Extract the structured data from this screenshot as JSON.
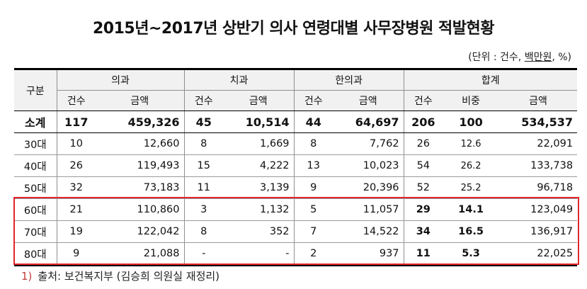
{
  "title": "2015년~2017년 상반기 의사 연령대별 사무장병원 적발현황",
  "unit": {
    "prefix": "(단위 : 건수, ",
    "underlined": "백만원",
    "suffix": ", %)"
  },
  "header": {
    "gubun": "구분",
    "groups": [
      "의과",
      "치과",
      "한의과",
      "합계"
    ],
    "sub": [
      "건수",
      "금액",
      "건수",
      "금액",
      "건수",
      "금액",
      "건수",
      "비중",
      "금액"
    ]
  },
  "rows": [
    {
      "label": "소계",
      "cells": [
        "117",
        "459,326",
        "45",
        "10,514",
        "44",
        "64,697",
        "206",
        "100",
        "534,537"
      ]
    },
    {
      "label": "30대",
      "cells": [
        "10",
        "12,660",
        "8",
        "1,669",
        "8",
        "7,762",
        "26",
        "12.6",
        "22,091"
      ]
    },
    {
      "label": "40대",
      "cells": [
        "26",
        "119,493",
        "15",
        "4,222",
        "13",
        "10,023",
        "54",
        "26.2",
        "133,738"
      ]
    },
    {
      "label": "50대",
      "cells": [
        "32",
        "73,183",
        "11",
        "3,139",
        "9",
        "20,396",
        "52",
        "25.2",
        "96,718"
      ]
    },
    {
      "label": "60대",
      "cells": [
        "21",
        "110,860",
        "3",
        "1,132",
        "5",
        "11,057",
        "29",
        "14.1",
        "123,049"
      ]
    },
    {
      "label": "70대",
      "cells": [
        "19",
        "122,042",
        "8",
        "352",
        "7",
        "14,522",
        "34",
        "16.5",
        "136,917"
      ]
    },
    {
      "label": "80대",
      "cells": [
        "9",
        "21,088",
        "-",
        "-",
        "2",
        "937",
        "11",
        "5.3",
        "22,025"
      ]
    }
  ],
  "source": {
    "mark": "1)",
    "text": "출처: 보건복지부 (김승희 의원실 재정리)"
  },
  "colors": {
    "highlight_border": "#e0262a",
    "header_bg": "#f1f1f1"
  }
}
